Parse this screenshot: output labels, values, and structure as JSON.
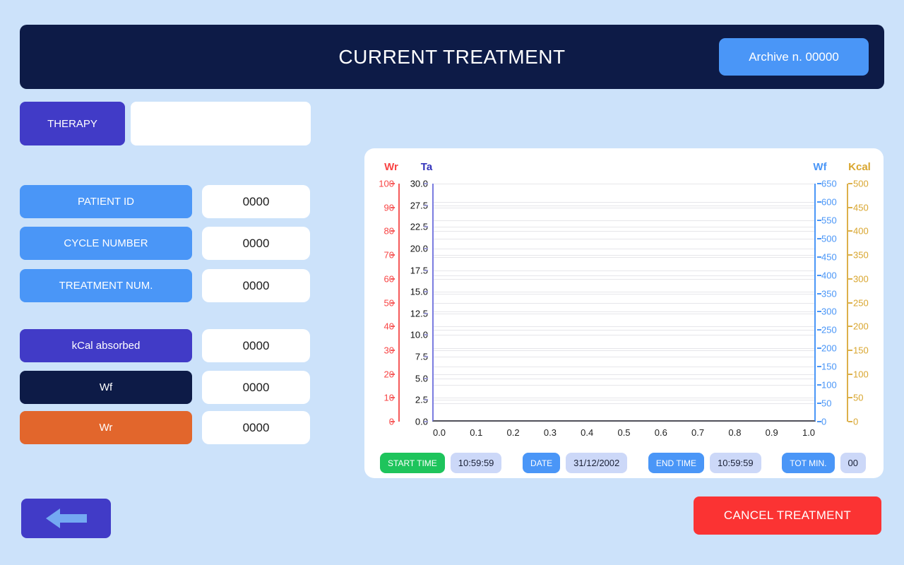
{
  "header": {
    "title": "CURRENT TREATMENT",
    "archive_button_label": "Archive n. 00000"
  },
  "therapy": {
    "button_label": "THERAPY",
    "value": ""
  },
  "fields": [
    {
      "label": "PATIENT ID",
      "value": "0000",
      "color": "blue"
    },
    {
      "label": "CYCLE NUMBER",
      "value": "0000",
      "color": "blue"
    },
    {
      "label": "TREATMENT NUM.",
      "value": "0000",
      "color": "blue"
    },
    {
      "label": "kCal absorbed",
      "value": "0000",
      "color": "indigo"
    },
    {
      "label": "Wf",
      "value": "0000",
      "color": "navy"
    },
    {
      "label": "Wr",
      "value": "0000",
      "color": "orange"
    }
  ],
  "chart_data": {
    "type": "line",
    "title": "",
    "series": [],
    "note": "empty plot, no data drawn yet; four independent y-axes share the plot, grid on",
    "x_axis": {
      "ticks": [
        "0.0",
        "0.1",
        "0.2",
        "0.3",
        "0.4",
        "0.5",
        "0.6",
        "0.7",
        "0.8",
        "0.9",
        "1.0"
      ],
      "range": [
        0.0,
        1.0
      ]
    },
    "y_axes": [
      {
        "id": "wr",
        "label": "Wr",
        "color": "#f84545",
        "side": "left",
        "ticks": [
          "100",
          "90",
          "80",
          "70",
          "60",
          "50",
          "40",
          "30",
          "20",
          "10",
          "0"
        ],
        "range": [
          0,
          100
        ]
      },
      {
        "id": "ta",
        "label": "Ta",
        "color": "#3333bb",
        "tick_color": "#111111",
        "side": "left",
        "ticks": [
          "30.0",
          "27.5",
          "22.5",
          "20.0",
          "17.5",
          "15.0",
          "12.5",
          "10.0",
          "7.5",
          "5.0",
          "2.5",
          "0.0"
        ],
        "range": [
          0,
          30
        ]
      },
      {
        "id": "wf",
        "label": "Wf",
        "color": "#4a96f7",
        "side": "right",
        "ticks": [
          "650",
          "600",
          "550",
          "500",
          "450",
          "400",
          "350",
          "300",
          "250",
          "200",
          "150",
          "100",
          "50",
          "0"
        ],
        "range": [
          0,
          650
        ]
      },
      {
        "id": "kcal",
        "label": "Kcal",
        "color": "#d9a62f",
        "side": "right",
        "ticks": [
          "500",
          "450",
          "400",
          "350",
          "300",
          "250",
          "200",
          "150",
          "100",
          "50",
          "0"
        ],
        "range": [
          0,
          500
        ]
      }
    ]
  },
  "footer": {
    "start_time": {
      "label": "START TIME",
      "value": "10:59:59",
      "color": "green"
    },
    "date": {
      "label": "DATE",
      "value": "31/12/2002",
      "color": "blue"
    },
    "end_time": {
      "label": "END TIME",
      "value": "10:59:59",
      "color": "blue"
    },
    "tot_min": {
      "label": "TOT MIN.",
      "value": "00",
      "color": "blue"
    }
  },
  "buttons": {
    "cancel_label": "CANCEL TREATMENT"
  },
  "colors": {
    "background": "#cce2fa",
    "navy": "#0d1b47",
    "indigo": "#413bc7",
    "blue": "#4a96f7",
    "orange": "#e2662c",
    "red": "#fb3333",
    "green": "#1ec45c",
    "pill_value_bg": "#ccd8f8",
    "wr_axis": "#f84545",
    "ta_axis": "#3333bb",
    "wf_axis": "#4a96f7",
    "kcal_axis": "#d9a62f"
  }
}
